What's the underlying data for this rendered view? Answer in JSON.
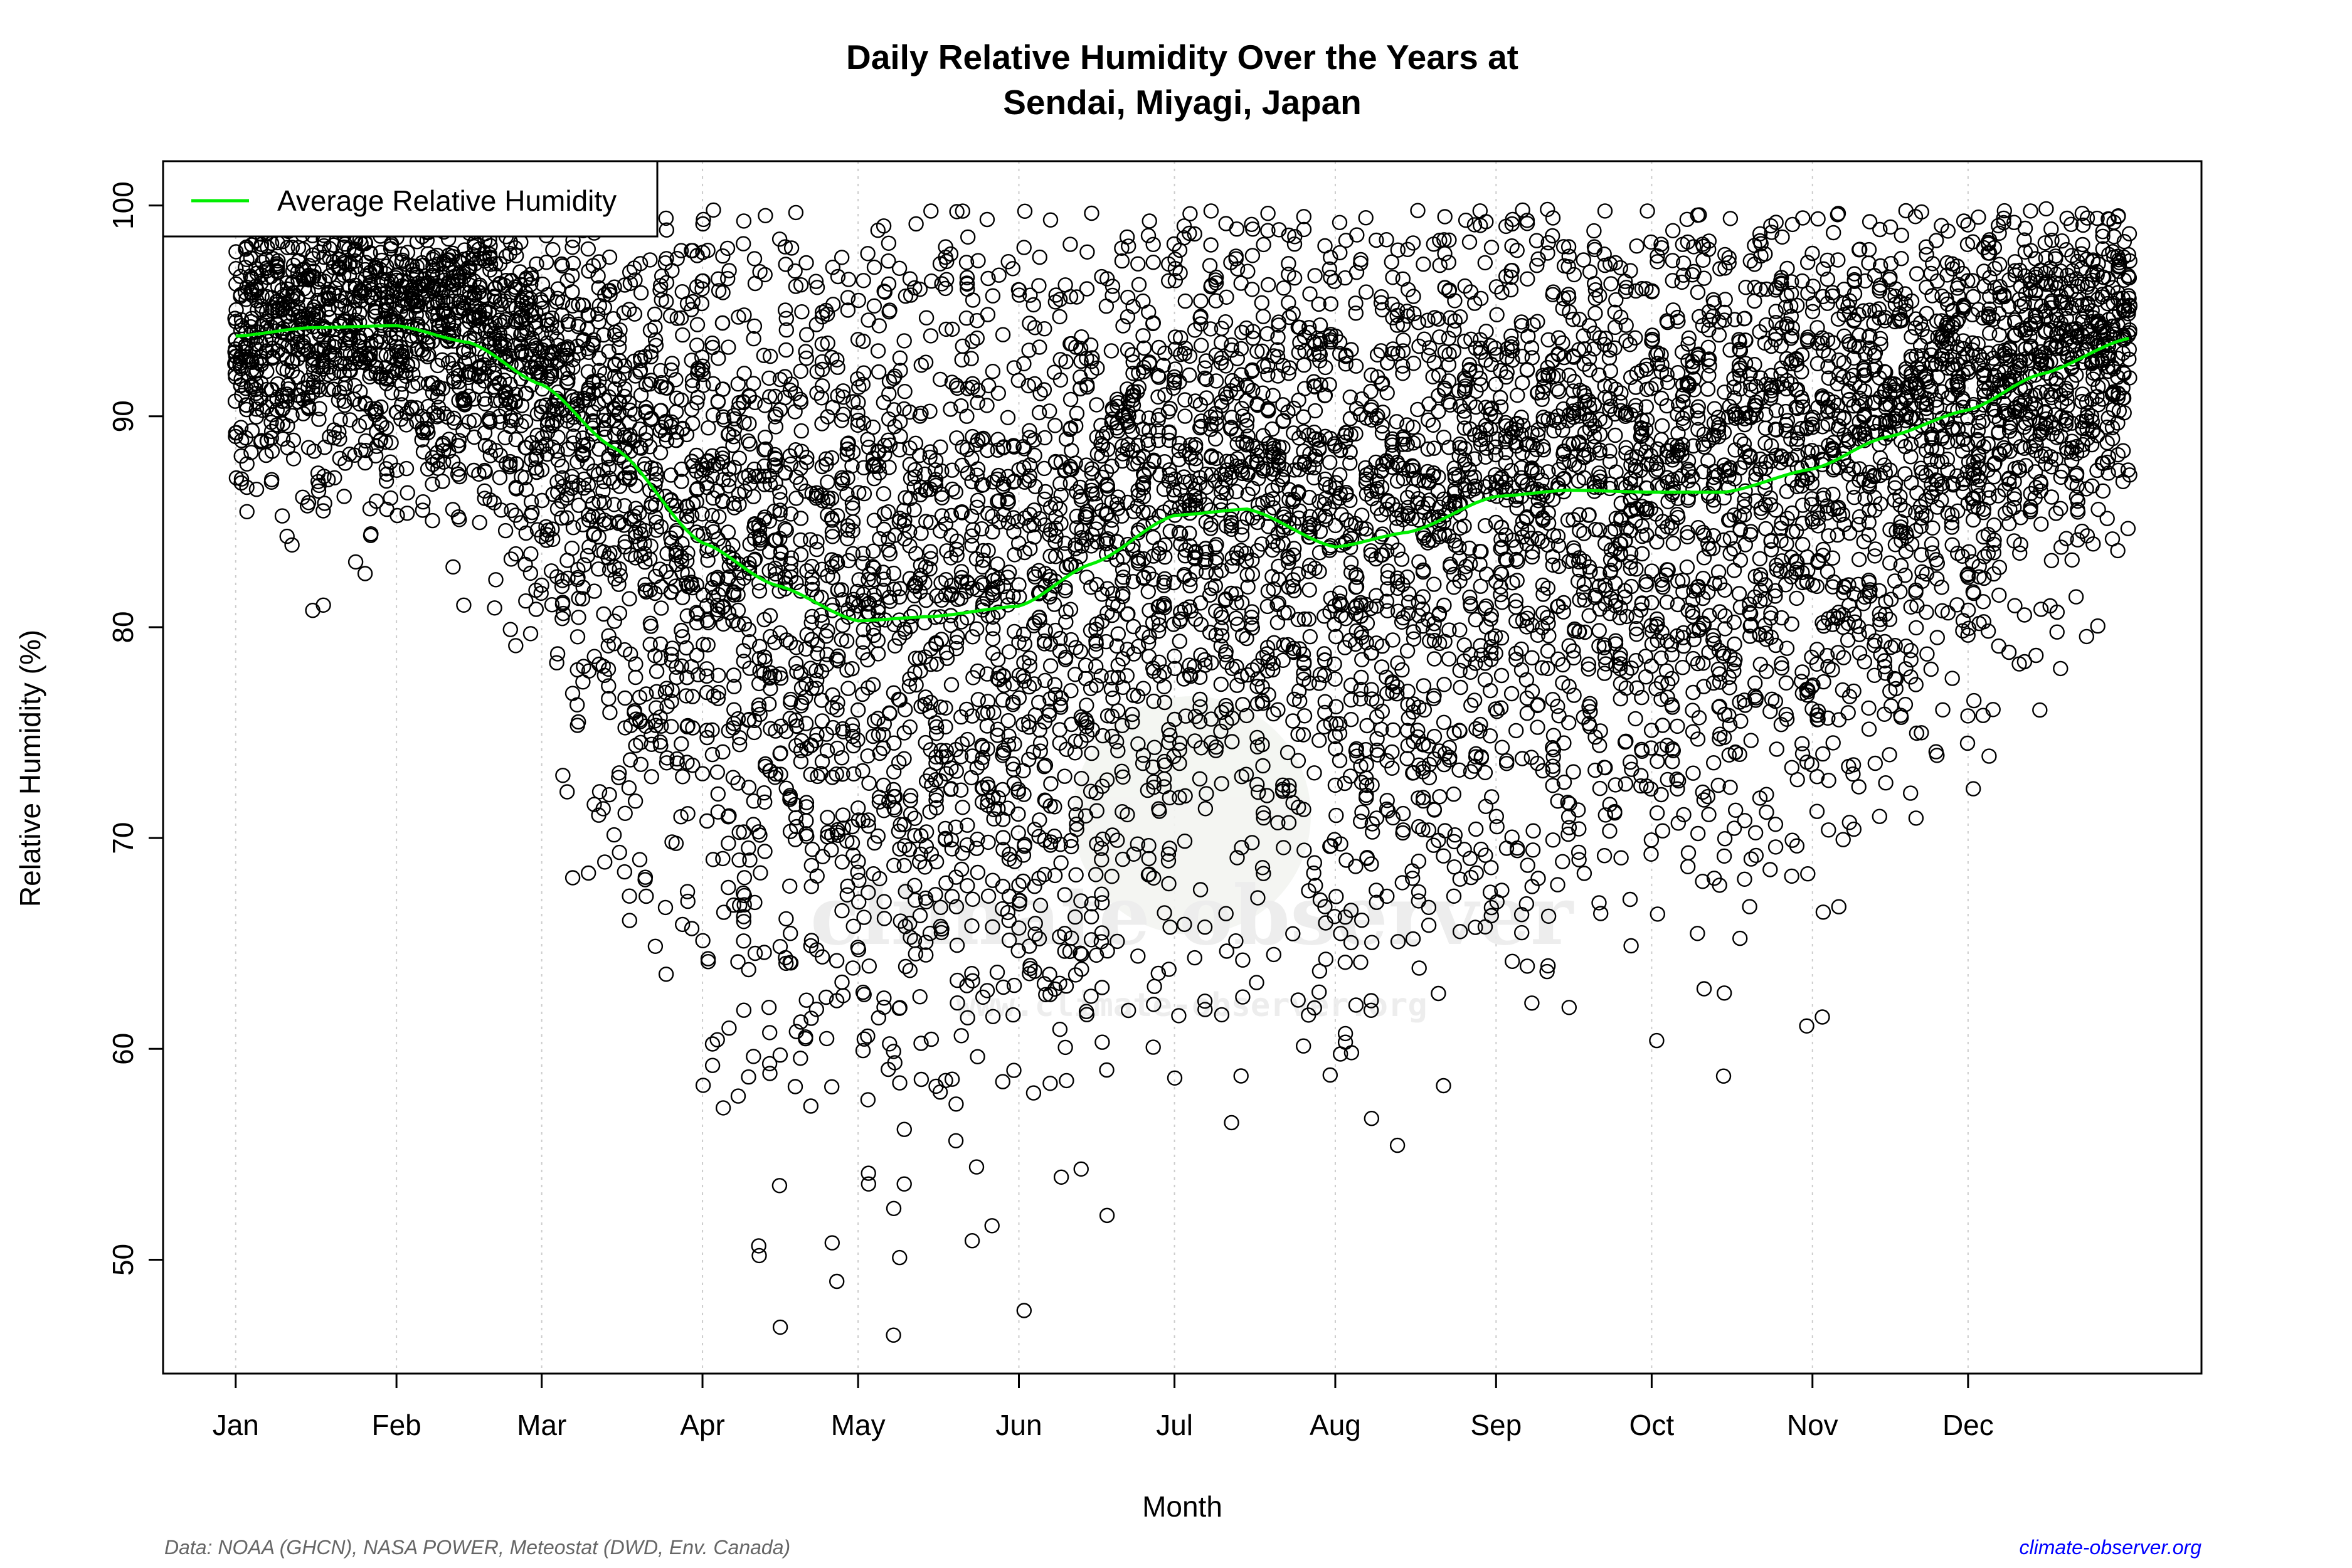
{
  "chart_data": {
    "type": "scatter",
    "title": [
      "Daily Relative Humidity Over the Years at",
      "Sendai, Miyagi, Japan"
    ],
    "xlabel": "Month",
    "ylabel": "Relative Humidity  (%)",
    "x_unit": "day of year",
    "xlim": [
      -13,
      380
    ],
    "ylim": [
      44.6,
      102.1
    ],
    "x_ticks": [
      {
        "day": 1,
        "label": "Jan"
      },
      {
        "day": 32,
        "label": "Feb"
      },
      {
        "day": 60,
        "label": "Mar"
      },
      {
        "day": 91,
        "label": "Apr"
      },
      {
        "day": 121,
        "label": "May"
      },
      {
        "day": 152,
        "label": "Jun"
      },
      {
        "day": 182,
        "label": "Jul"
      },
      {
        "day": 213,
        "label": "Aug"
      },
      {
        "day": 244,
        "label": "Sep"
      },
      {
        "day": 274,
        "label": "Oct"
      },
      {
        "day": 305,
        "label": "Nov"
      },
      {
        "day": 335,
        "label": "Dec"
      }
    ],
    "y_ticks": [
      50,
      60,
      70,
      80,
      90,
      100
    ],
    "grid": "vertical dotted at month ticks",
    "legend": {
      "position": "top-left",
      "entries": [
        {
          "label": "Average Relative Humidity",
          "color": "#00ee00"
        }
      ]
    },
    "series": [
      {
        "name": "Average Relative Humidity",
        "type": "line",
        "color": "#00ee00",
        "x": [
          1,
          15,
          32,
          46,
          60,
          74,
          91,
          105,
          121,
          135,
          152,
          166,
          182,
          196,
          213,
          227,
          244,
          258,
          274,
          288,
          305,
          319,
          335,
          349,
          366
        ],
        "y": [
          93.8,
          94.2,
          94.3,
          93.5,
          91.5,
          88.5,
          84.0,
          82.0,
          80.3,
          80.5,
          81.0,
          83.0,
          85.3,
          85.6,
          83.8,
          84.5,
          86.2,
          86.5,
          86.4,
          86.4,
          87.5,
          89.0,
          90.3,
          92.0,
          93.7
        ]
      },
      {
        "name": "",
        "type": "scatter",
        "color": "#000000",
        "marker": "open-circle",
        "note_points": "daily observations; notable low values listed",
        "x": [
          106,
          129,
          116,
          143,
          169,
          123,
          164,
          220,
          193,
          95
        ],
        "y": [
          46.8,
          50.1,
          50.8,
          50.9,
          52.1,
          54.1,
          54.3,
          56.7,
          56.5,
          57.2
        ]
      }
    ]
  },
  "watermark": {
    "text": "climate observer",
    "url": "www.climate-observer.org"
  },
  "footer": {
    "source": "Data: NOAA (GHCN), NASA POWER, Meteostat (DWD, Env. Canada)",
    "site": "climate-observer.org",
    "site_color": "#0000ff"
  }
}
